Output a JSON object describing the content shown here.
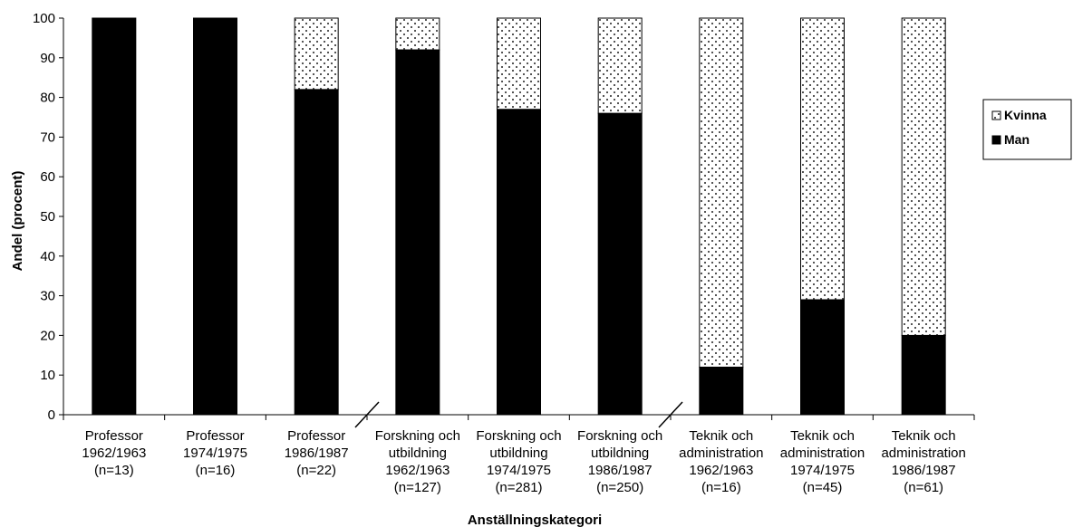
{
  "chart_data": {
    "type": "bar",
    "stacked": true,
    "percent": true,
    "categories": [
      [
        "Professor",
        "1962/1963",
        "(n=13)"
      ],
      [
        "Professor",
        "1974/1975",
        "(n=16)"
      ],
      [
        "Professor",
        "1986/1987",
        "(n=22)"
      ],
      [
        "Forskning och",
        "utbildning",
        "1962/1963",
        "(n=127)"
      ],
      [
        "Forskning och",
        "utbildning",
        "1974/1975",
        "(n=281)"
      ],
      [
        "Forskning och",
        "utbildning",
        "1986/1987",
        "(n=250)"
      ],
      [
        "Teknik och",
        "administration",
        "1962/1963",
        "(n=16)"
      ],
      [
        "Teknik och",
        "administration",
        "1974/1975",
        "(n=45)"
      ],
      [
        "Teknik och",
        "administration",
        "1986/1987",
        "(n=61)"
      ]
    ],
    "series": [
      {
        "name": "Man",
        "color": "#000000",
        "pattern": "solid",
        "values": [
          100,
          100,
          82,
          92,
          77,
          76,
          12,
          29,
          20
        ]
      },
      {
        "name": "Kvinna",
        "color": "#ffffff",
        "pattern": "dotted",
        "values": [
          0,
          0,
          18,
          8,
          23,
          24,
          88,
          71,
          80
        ]
      }
    ],
    "xlabel": "Anställningskategori",
    "ylabel": "Andel (procent)",
    "ylim": [
      0,
      100
    ],
    "yticks": [
      0,
      10,
      20,
      30,
      40,
      50,
      60,
      70,
      80,
      90,
      100
    ],
    "grid": false,
    "legend_position": "right",
    "legend_order": [
      "Kvinna",
      "Man"
    ],
    "group_breaks_after": [
      2,
      5
    ]
  }
}
